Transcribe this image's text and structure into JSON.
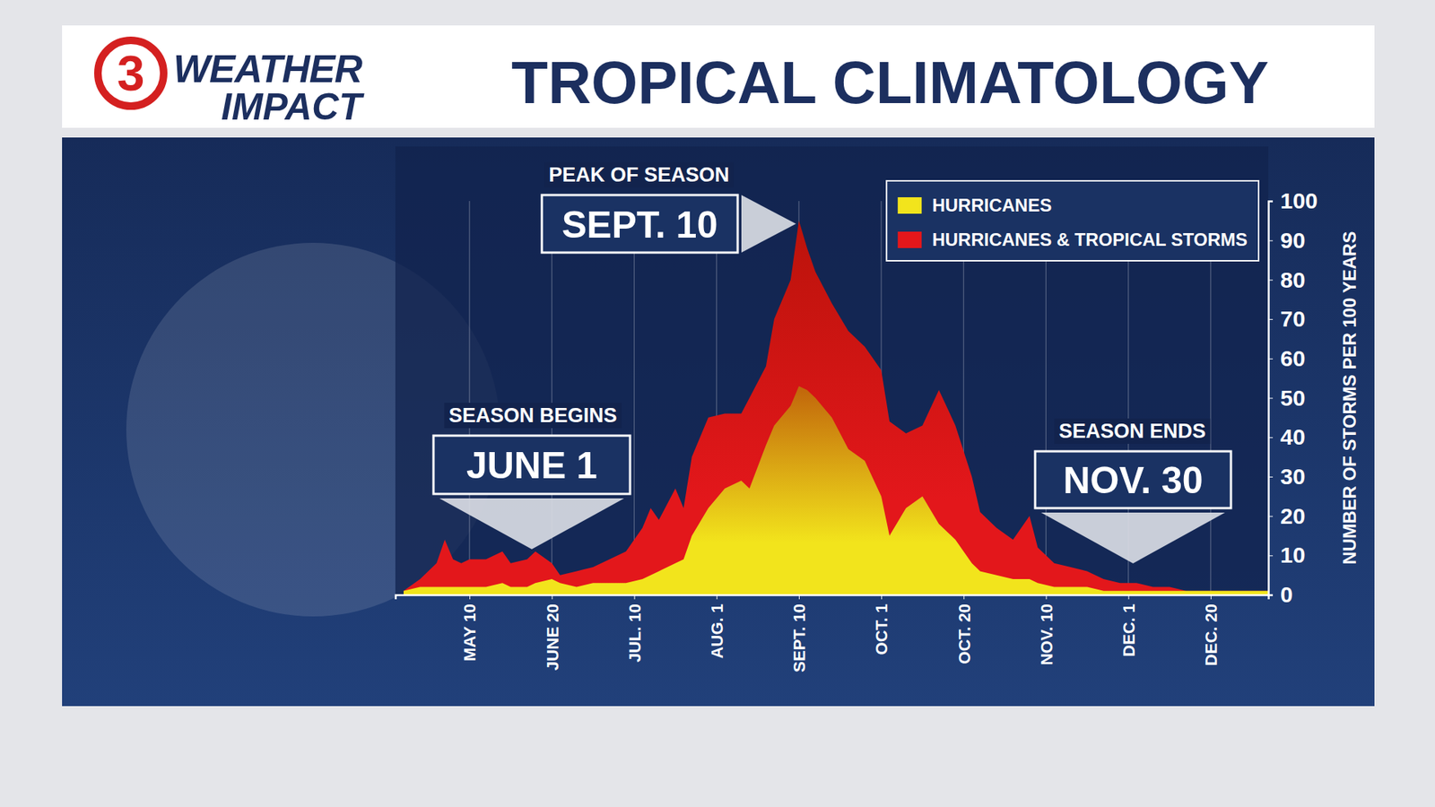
{
  "header": {
    "logo_number": "3",
    "logo_top": "WEATHER",
    "logo_bottom": "IMPACT"
  },
  "chart_data": {
    "type": "area",
    "title": "TROPICAL CLIMATOLOGY",
    "y_label": "NUMBER OF STORMS PER 100 YEARS",
    "x": [
      2,
      4,
      6,
      7,
      8,
      9,
      10,
      12,
      14,
      15,
      17,
      18,
      20,
      21,
      23,
      25,
      27,
      29,
      31,
      32,
      33,
      35,
      36,
      37,
      39,
      41,
      43,
      44,
      46,
      47,
      49,
      50,
      51,
      52,
      54,
      56,
      58,
      60,
      61,
      63,
      65,
      67,
      69,
      71,
      72,
      74,
      76,
      78,
      79,
      81,
      83,
      85,
      87,
      89,
      91,
      93,
      95,
      97,
      100,
      103,
      107
    ],
    "series": [
      {
        "name": "HURRICANES",
        "color": "#f2e41c",
        "values": [
          1,
          2,
          2,
          2,
          2,
          2,
          2,
          2,
          3,
          2,
          2,
          3,
          4,
          3,
          2,
          3,
          3,
          3,
          4,
          5,
          6,
          8,
          9,
          15,
          22,
          27,
          29,
          27,
          38,
          43,
          48,
          53,
          52,
          50,
          45,
          37,
          34,
          25,
          15,
          22,
          25,
          18,
          14,
          8,
          6,
          5,
          4,
          4,
          3,
          2,
          2,
          2,
          1,
          1,
          1,
          1,
          1,
          1,
          1,
          1,
          1
        ]
      },
      {
        "name": "HURRICANES & TROPICAL STORMS",
        "color": "#e3171b",
        "values": [
          1,
          4,
          8,
          14,
          9,
          8,
          9,
          9,
          11,
          8,
          9,
          11,
          8,
          5,
          6,
          7,
          9,
          11,
          17,
          22,
          19,
          27,
          22,
          35,
          45,
          46,
          46,
          50,
          58,
          70,
          80,
          95,
          88,
          82,
          74,
          67,
          63,
          57,
          44,
          41,
          43,
          52,
          43,
          30,
          21,
          17,
          14,
          20,
          12,
          8,
          7,
          6,
          4,
          3,
          3,
          2,
          2,
          1,
          1,
          1,
          1
        ]
      }
    ],
    "xlim": [
      1,
      107
    ],
    "xticks": [
      {
        "value": 10,
        "label": "MAY 10"
      },
      {
        "value": 20,
        "label": "JUNE 20"
      },
      {
        "value": 30,
        "label": "JUL. 10"
      },
      {
        "value": 40,
        "label": "AUG. 1"
      },
      {
        "value": 50,
        "label": "SEPT. 10"
      },
      {
        "value": 60,
        "label": "OCT. 1"
      },
      {
        "value": 70,
        "label": "OCT. 20"
      },
      {
        "value": 80,
        "label": "NOV. 10"
      },
      {
        "value": 90,
        "label": "DEC. 1"
      },
      {
        "value": 100,
        "label": "DEC. 20"
      }
    ],
    "ylim": [
      0,
      100
    ],
    "yticks": [
      0,
      10,
      20,
      30,
      40,
      50,
      60,
      70,
      80,
      90,
      100
    ],
    "grid": true,
    "legend": "top-right",
    "annotations": [
      {
        "label": "PEAK OF SEASON",
        "text": "SEPT. 10"
      },
      {
        "label": "SEASON BEGINS",
        "text": "JUNE 1"
      },
      {
        "label": "SEASON ENDS",
        "text": "NOV. 30"
      }
    ]
  }
}
